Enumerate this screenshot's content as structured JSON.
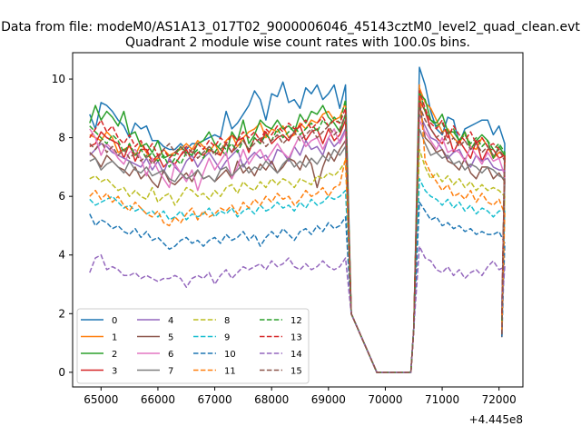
{
  "chart_data": {
    "type": "line",
    "suptitle": "Data from file: modeM0/AS1A13_017T02_9000006046_45143cztM0_level2_quad_clean.evt",
    "title": "Quadrant 2 module wise count rates with 100.0s bins.",
    "xlabel": "",
    "ylabel": "",
    "x_offset_label": "+4.445e8",
    "xlim": [
      64500,
      72420
    ],
    "ylim": [
      -0.5,
      10.9
    ],
    "xticks": [
      65000,
      66000,
      67000,
      68000,
      69000,
      70000,
      71000,
      72000
    ],
    "xtick_labels": [
      "65000",
      "66000",
      "67000",
      "68000",
      "69000",
      "70000",
      "71000",
      "72000"
    ],
    "yticks": [
      0,
      2,
      4,
      6,
      8,
      10
    ],
    "ytick_labels": [
      "0",
      "2",
      "4",
      "6",
      "8",
      "10"
    ],
    "grid": false,
    "legend_position": "lower-left",
    "legend_columns": 4,
    "x": {
      "start": 64800,
      "step": 100,
      "gap": [
        69750,
        70450
      ],
      "end": 72050
    },
    "series": [
      {
        "name": "0",
        "color": "#1f77b4",
        "dash": "solid",
        "pre": [
          8.8,
          8.3,
          9.2,
          9.1,
          8.9,
          8.6,
          8.4,
          8.0,
          8.5,
          8.3,
          8.4,
          7.9,
          7.9,
          7.7,
          7.6,
          7.6,
          7.8,
          7.6,
          7.8,
          7.8,
          7.9,
          8.0,
          8.1,
          8.0,
          8.9,
          8.3,
          8.5,
          8.8,
          9.1,
          9.6,
          9.3,
          8.6,
          9.5,
          9.4,
          9.9,
          9.2,
          9.3,
          9.0,
          9.7,
          9.5,
          9.8,
          9.3,
          9.5,
          9.8,
          9.0,
          9.8
        ],
        "post": [
          10.4,
          9.8,
          8.9,
          8.3,
          8.1,
          8.7,
          8.6,
          7.8,
          8.3,
          8.4,
          8.5,
          8.6,
          8.6,
          8.1,
          8.4,
          7.8
        ]
      },
      {
        "name": "1",
        "color": "#ff7f0e",
        "dash": "solid",
        "pre": [
          8.1,
          8.0,
          7.9,
          8.2,
          8.0,
          7.5,
          7.6,
          7.7,
          7.4,
          7.8,
          7.5,
          7.2,
          7.3,
          7.6,
          7.4,
          7.5,
          7.6,
          7.8,
          7.6,
          7.9,
          7.7,
          7.5,
          7.8,
          7.4,
          7.9,
          8.1,
          7.7,
          8.0,
          8.2,
          8.3,
          8.5,
          8.0,
          8.3,
          8.2,
          8.4,
          8.0,
          8.1,
          8.5,
          8.3,
          8.6,
          8.5,
          8.8,
          8.9,
          8.6,
          8.7,
          9.2
        ],
        "post": [
          9.7,
          9.2,
          9.0,
          8.6,
          8.2,
          8.3,
          8.0,
          7.8,
          8.2,
          7.7,
          7.6,
          8.0,
          7.7,
          7.3,
          7.5,
          7.4
        ]
      },
      {
        "name": "2",
        "color": "#2ca02c",
        "dash": "solid",
        "pre": [
          8.5,
          9.1,
          8.6,
          8.9,
          8.7,
          8.4,
          8.9,
          8.1,
          8.2,
          7.7,
          7.8,
          7.5,
          7.9,
          7.3,
          7.4,
          7.4,
          7.7,
          7.5,
          7.4,
          7.8,
          7.9,
          8.2,
          7.8,
          7.6,
          7.4,
          8.2,
          7.9,
          8.6,
          7.8,
          8.1,
          8.6,
          8.4,
          8.3,
          8.6,
          8.3,
          8.4,
          8.2,
          8.8,
          8.5,
          8.9,
          8.8,
          9.1,
          8.7,
          8.5,
          8.2,
          8.8
        ],
        "post": [
          9.5,
          9.3,
          8.6,
          8.5,
          8.8,
          8.2,
          8.2,
          7.9,
          8.2,
          7.6,
          7.9,
          8.1,
          7.9,
          7.3,
          7.7,
          7.4
        ]
      },
      {
        "name": "3",
        "color": "#d62728",
        "dash": "solid",
        "pre": [
          7.7,
          7.8,
          8.2,
          8.0,
          7.9,
          7.8,
          7.3,
          7.8,
          7.2,
          7.6,
          7.6,
          7.2,
          7.4,
          7.0,
          7.2,
          7.1,
          7.4,
          7.6,
          7.2,
          7.5,
          7.4,
          7.6,
          7.5,
          7.4,
          7.8,
          7.5,
          7.9,
          8.0,
          7.5,
          8.0,
          7.8,
          8.2,
          7.8,
          8.0,
          8.1,
          7.9,
          8.2,
          8.4,
          7.9,
          8.2,
          8.3,
          7.8,
          8.3,
          7.9,
          8.1,
          8.6
        ],
        "post": [
          9.3,
          8.9,
          8.3,
          8.0,
          7.8,
          8.2,
          7.5,
          7.9,
          7.6,
          7.3,
          7.9,
          7.2,
          7.6,
          7.6,
          7.3,
          7.4
        ]
      },
      {
        "name": "4",
        "color": "#9467bd",
        "dash": "solid",
        "pre": [
          7.4,
          7.6,
          7.8,
          7.7,
          7.5,
          7.4,
          7.3,
          7.2,
          7.1,
          7.0,
          7.3,
          6.9,
          7.2,
          6.8,
          7.3,
          7.0,
          6.8,
          7.2,
          7.4,
          7.0,
          7.3,
          7.5,
          7.2,
          6.9,
          7.2,
          7.4,
          7.6,
          7.0,
          7.3,
          7.5,
          7.3,
          7.4,
          7.1,
          7.6,
          7.5,
          7.2,
          7.7,
          7.4,
          7.9,
          7.6,
          7.7,
          7.4,
          8.0,
          7.7,
          7.9,
          8.3
        ],
        "post": [
          8.8,
          8.4,
          8.0,
          7.9,
          7.6,
          7.3,
          7.5,
          7.6,
          7.2,
          7.0,
          7.4,
          7.2,
          7.3,
          7.0,
          6.9,
          6.9
        ]
      },
      {
        "name": "5",
        "color": "#8c564b",
        "dash": "solid",
        "pre": [
          7.5,
          7.3,
          7.0,
          7.4,
          7.2,
          7.0,
          6.9,
          6.7,
          7.0,
          6.6,
          6.8,
          6.5,
          6.3,
          6.9,
          6.5,
          6.4,
          6.6,
          6.8,
          6.5,
          6.9,
          6.6,
          6.7,
          6.5,
          6.7,
          6.9,
          6.6,
          7.2,
          6.8,
          7.0,
          6.7,
          7.1,
          6.9,
          7.2,
          6.8,
          7.0,
          7.3,
          7.2,
          6.9,
          7.4,
          7.1,
          6.3,
          7.0,
          7.5,
          7.2,
          7.6,
          7.9
        ],
        "post": [
          9.2,
          8.0,
          7.8,
          7.5,
          7.6,
          7.2,
          7.1,
          6.9,
          7.3,
          6.8,
          6.6,
          7.0,
          7.0,
          6.6,
          6.8,
          6.5
        ]
      },
      {
        "name": "6",
        "color": "#e377c2",
        "dash": "solid",
        "pre": [
          8.3,
          8.0,
          7.4,
          7.8,
          7.6,
          7.3,
          7.1,
          7.5,
          7.6,
          7.3,
          6.7,
          7.3,
          6.9,
          6.6,
          6.3,
          7.1,
          6.8,
          6.5,
          6.9,
          6.2,
          6.8,
          7.3,
          6.9,
          7.2,
          7.5,
          6.6,
          7.0,
          7.6,
          7.1,
          7.4,
          7.6,
          7.2,
          7.5,
          7.8,
          7.5,
          7.3,
          7.7,
          8.1,
          7.7,
          7.9,
          8.0,
          7.6,
          8.0,
          8.3,
          7.8,
          8.2
        ],
        "post": [
          8.6,
          8.2,
          7.9,
          7.6,
          8.0,
          7.5,
          7.6,
          7.5,
          7.2,
          7.7,
          7.4,
          7.1,
          7.5,
          7.2,
          7.3,
          6.7
        ]
      },
      {
        "name": "7",
        "color": "#7f7f7f",
        "dash": "solid",
        "pre": [
          7.2,
          7.3,
          6.9,
          7.1,
          7.2,
          7.0,
          6.8,
          7.2,
          6.9,
          6.8,
          7.0,
          6.7,
          6.8,
          6.9,
          6.6,
          6.5,
          6.8,
          6.6,
          6.7,
          6.9,
          6.6,
          6.7,
          6.5,
          6.9,
          7.0,
          6.7,
          6.9,
          7.1,
          6.8,
          7.0,
          6.9,
          7.2,
          7.0,
          6.8,
          7.1,
          7.3,
          7.0,
          7.2,
          7.0,
          7.3,
          7.1,
          7.4,
          7.2,
          7.6,
          7.4,
          7.7
        ],
        "post": [
          8.3,
          7.8,
          7.4,
          7.5,
          7.3,
          7.4,
          7.1,
          7.2,
          6.9,
          7.1,
          7.0,
          6.8,
          7.0,
          6.9,
          6.7,
          6.6
        ]
      },
      {
        "name": "8",
        "color": "#bcbd22",
        "dash": "dashed",
        "pre": [
          6.6,
          6.7,
          6.5,
          6.6,
          6.4,
          6.2,
          6.3,
          6.0,
          6.2,
          6.0,
          5.9,
          6.3,
          5.8,
          6.0,
          6.1,
          5.7,
          6.0,
          6.3,
          6.2,
          6.0,
          6.1,
          5.9,
          6.2,
          6.0,
          6.3,
          6.4,
          6.1,
          6.5,
          6.3,
          6.2,
          6.5,
          6.3,
          6.6,
          6.4,
          6.6,
          6.5,
          6.3,
          6.6,
          6.5,
          6.4,
          6.7,
          6.6,
          6.8,
          6.7,
          6.9,
          7.2
        ],
        "post": [
          7.6,
          7.0,
          6.6,
          6.8,
          6.5,
          6.7,
          6.4,
          6.6,
          6.3,
          6.5,
          6.2,
          6.4,
          6.2,
          6.3,
          6.2,
          6.0
        ]
      },
      {
        "name": "9",
        "color": "#17becf",
        "dash": "dashed",
        "pre": [
          5.9,
          5.7,
          5.8,
          5.9,
          6.0,
          5.8,
          5.6,
          5.7,
          5.5,
          5.6,
          5.4,
          5.5,
          5.3,
          5.5,
          5.2,
          5.3,
          5.5,
          5.2,
          5.4,
          5.3,
          5.4,
          5.6,
          5.3,
          5.5,
          5.4,
          5.6,
          5.3,
          5.5,
          5.6,
          5.4,
          5.7,
          5.5,
          5.6,
          5.8,
          5.6,
          5.7,
          5.5,
          5.8,
          5.6,
          5.9,
          5.7,
          5.8,
          6.0,
          5.9,
          6.0,
          6.2
        ],
        "post": [
          6.6,
          6.2,
          6.0,
          5.9,
          5.7,
          5.9,
          5.6,
          5.8,
          5.5,
          5.7,
          5.4,
          5.6,
          5.5,
          5.3,
          5.5,
          5.5
        ]
      },
      {
        "name": "10",
        "color": "#1f77b4",
        "dash": "dashed",
        "pre": [
          5.4,
          5.0,
          5.2,
          5.1,
          4.9,
          5.0,
          4.8,
          4.7,
          4.9,
          4.6,
          4.8,
          4.5,
          4.6,
          4.4,
          4.2,
          4.3,
          4.5,
          4.6,
          4.4,
          4.5,
          4.3,
          4.5,
          4.6,
          4.4,
          4.7,
          4.5,
          4.6,
          4.8,
          4.5,
          4.7,
          4.3,
          4.6,
          4.8,
          4.6,
          4.9,
          4.7,
          4.5,
          4.8,
          4.9,
          4.7,
          5.0,
          4.8,
          5.1,
          4.9,
          5.0,
          5.3
        ],
        "post": [
          5.8,
          5.5,
          5.2,
          5.3,
          5.0,
          5.1,
          4.9,
          5.0,
          4.8,
          4.9,
          4.7,
          4.8,
          4.7,
          4.7,
          4.8,
          4.4
        ]
      },
      {
        "name": "11",
        "color": "#ff7f0e",
        "dash": "dashed",
        "pre": [
          6.0,
          6.2,
          5.9,
          6.1,
          5.8,
          6.0,
          5.7,
          5.5,
          5.8,
          5.6,
          5.4,
          5.3,
          5.5,
          5.1,
          5.0,
          5.3,
          5.1,
          5.4,
          5.6,
          5.2,
          5.5,
          5.3,
          5.4,
          5.6,
          5.5,
          5.7,
          5.4,
          5.8,
          5.6,
          5.9,
          5.7,
          6.0,
          5.8,
          6.1,
          5.9,
          6.0,
          5.7,
          5.9,
          6.2,
          6.0,
          6.1,
          6.3,
          6.0,
          6.3,
          6.4,
          7.3
        ],
        "post": [
          9.8,
          7.2,
          6.8,
          6.5,
          6.2,
          6.4,
          6.0,
          6.1,
          5.9,
          6.2,
          5.8,
          6.1,
          5.8,
          5.7,
          5.9,
          5.4
        ]
      },
      {
        "name": "12",
        "color": "#2ca02c",
        "dash": "dashed",
        "pre": [
          8.4,
          8.2,
          8.0,
          7.8,
          8.1,
          7.9,
          7.5,
          7.8,
          7.4,
          7.6,
          7.3,
          7.5,
          7.2,
          7.4,
          7.0,
          7.3,
          7.1,
          7.5,
          7.4,
          7.6,
          7.3,
          7.7,
          7.5,
          7.8,
          7.6,
          7.8,
          7.5,
          7.9,
          7.6,
          8.0,
          7.8,
          8.1,
          7.9,
          8.3,
          8.0,
          8.2,
          8.4,
          8.1,
          8.3,
          8.5,
          8.2,
          8.6,
          8.4,
          8.7,
          8.5,
          9.3
        ],
        "post": [
          9.6,
          8.9,
          8.6,
          8.4,
          8.5,
          8.1,
          8.3,
          7.9,
          8.1,
          7.8,
          8.0,
          7.7,
          7.9,
          7.6,
          7.8,
          7.5
        ]
      },
      {
        "name": "13",
        "color": "#d62728",
        "dash": "dashed",
        "pre": [
          8.0,
          8.3,
          8.6,
          8.2,
          8.4,
          8.0,
          7.8,
          8.1,
          7.7,
          7.9,
          7.5,
          7.8,
          7.4,
          7.6,
          7.3,
          7.5,
          7.4,
          7.7,
          7.5,
          7.8,
          7.6,
          7.9,
          7.7,
          8.0,
          7.8,
          8.1,
          7.9,
          8.2,
          8.0,
          8.2,
          7.9,
          8.3,
          8.1,
          8.4,
          8.2,
          8.5,
          8.3,
          8.4,
          8.6,
          8.3,
          8.5,
          8.7,
          8.4,
          8.6,
          8.5,
          9.0
        ],
        "post": [
          9.6,
          9.0,
          8.5,
          8.3,
          8.6,
          8.0,
          8.4,
          8.1,
          7.9,
          8.2,
          7.8,
          8.0,
          7.7,
          7.8,
          7.6,
          7.3
        ]
      },
      {
        "name": "14",
        "color": "#9467bd",
        "dash": "dashed",
        "pre": [
          3.4,
          3.9,
          4.0,
          3.5,
          3.6,
          3.5,
          3.3,
          3.3,
          3.4,
          3.2,
          3.3,
          3.2,
          3.1,
          3.2,
          3.2,
          3.3,
          3.2,
          2.9,
          3.2,
          3.3,
          3.2,
          3.4,
          3.0,
          3.3,
          3.5,
          3.2,
          3.4,
          3.6,
          3.5,
          3.6,
          3.7,
          3.5,
          3.8,
          3.6,
          3.7,
          3.9,
          3.6,
          3.5,
          3.7,
          3.5,
          3.6,
          3.8,
          3.6,
          3.5,
          3.6,
          3.9
        ],
        "post": [
          4.3,
          3.9,
          3.8,
          3.5,
          3.4,
          3.6,
          3.3,
          3.5,
          3.2,
          3.4,
          3.5,
          3.3,
          3.6,
          3.8,
          3.5,
          3.6
        ]
      },
      {
        "name": "15",
        "color": "#8c564b",
        "dash": "dashed",
        "pre": [
          7.8,
          7.6,
          7.9,
          7.5,
          7.7,
          7.4,
          7.6,
          7.3,
          7.5,
          7.2,
          7.4,
          7.1,
          7.3,
          7.6,
          7.8,
          7.5,
          7.7,
          7.4,
          7.6,
          7.3,
          7.5,
          7.7,
          7.4,
          7.6,
          7.8,
          7.5,
          7.7,
          7.9,
          7.6,
          7.8,
          8.0,
          7.7,
          7.9,
          8.1,
          7.8,
          8.0,
          8.2,
          7.9,
          8.1,
          8.3,
          8.0,
          8.2,
          8.4,
          8.1,
          8.3,
          8.8
        ],
        "post": [
          9.1,
          8.6,
          8.3,
          8.0,
          8.2,
          7.8,
          8.0,
          7.7,
          7.9,
          7.6,
          7.8,
          7.5,
          7.7,
          7.4,
          7.6,
          7.2
        ]
      }
    ]
  }
}
